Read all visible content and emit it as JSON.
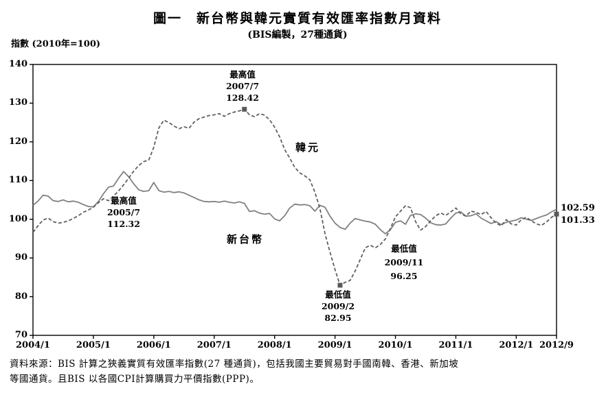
{
  "title": "圖一　新台幣與韓元實質有效匯率指數月資料",
  "subtitle": "(BIS編製，27種通貨)",
  "y_axis_unit": "指數 (2010年=100)",
  "source_note": {
    "line1": "資料來源：BIS 計算之狹義實質有效匯率指數(27 種通貨)，包括我國主要貿易對手國南韓、香港、新加坡",
    "line2": "等國通貨。且BIS 以各國CPI計算購買力平價指數(PPP)。"
  },
  "end_labels": {
    "twd": "102.59",
    "krw": "101.33"
  },
  "chart_data": {
    "type": "line",
    "title": "新台幣與韓元實質有效匯率指數月資料 (BIS編製，27種通貨)",
    "ylabel": "指數 (2010年=100)",
    "ylim": [
      70,
      140
    ],
    "y_ticks": [
      140,
      130,
      120,
      110,
      100,
      90,
      80,
      70
    ],
    "x_range_months": [
      "2004/1",
      "2012/9"
    ],
    "x_tick_labels": [
      "2004/1",
      "2005/1",
      "2006/1",
      "2007/1",
      "2008/1",
      "2009/1",
      "2010/1",
      "2011/1",
      "2012/1",
      "2012/9"
    ],
    "x_tick_month_index": [
      0,
      12,
      24,
      36,
      48,
      60,
      72,
      84,
      96,
      104
    ],
    "grid": false,
    "series": [
      {
        "name": "新台幣",
        "style": "solid",
        "color": "#808080",
        "values": [
          103.6,
          104.7,
          106.2,
          106.0,
          104.8,
          104.6,
          105.0,
          104.5,
          104.7,
          104.4,
          103.8,
          103.3,
          103.2,
          104.6,
          106.6,
          108.3,
          108.6,
          110.6,
          112.32,
          111.0,
          109.2,
          107.6,
          107.2,
          107.4,
          109.5,
          107.4,
          107.0,
          107.2,
          106.9,
          107.1,
          106.8,
          106.2,
          105.6,
          105.0,
          104.6,
          104.5,
          104.6,
          104.4,
          104.7,
          104.4,
          104.2,
          104.5,
          104.1,
          102.0,
          102.2,
          101.6,
          101.3,
          101.5,
          100.1,
          99.6,
          100.9,
          102.9,
          103.9,
          103.7,
          103.8,
          103.5,
          102.1,
          103.6,
          103.1,
          100.8,
          99.0,
          97.9,
          97.4,
          99.0,
          100.2,
          99.8,
          99.5,
          99.3,
          98.7,
          97.3,
          96.25,
          97.3,
          99.2,
          99.6,
          98.7,
          101.0,
          101.4,
          101.2,
          100.3,
          99.1,
          98.6,
          98.5,
          98.8,
          100.3,
          101.6,
          101.9,
          100.8,
          100.9,
          101.4,
          100.3,
          99.6,
          98.9,
          99.4,
          98.6,
          99.2,
          99.5,
          99.8,
          100.4,
          100.0,
          99.7,
          100.2,
          100.7,
          101.1,
          101.9,
          102.59
        ]
      },
      {
        "name": "韓元",
        "style": "dashed",
        "color": "#5f5f5f",
        "values": [
          96.6,
          98.3,
          99.8,
          100.3,
          99.4,
          99.0,
          99.2,
          99.6,
          100.2,
          100.9,
          101.8,
          102.4,
          103.1,
          104.3,
          105.3,
          104.8,
          106.0,
          107.3,
          108.9,
          110.6,
          112.4,
          113.9,
          114.9,
          115.3,
          118.6,
          123.6,
          125.6,
          125.0,
          124.1,
          123.4,
          123.9,
          123.5,
          125.1,
          126.0,
          126.4,
          126.8,
          127.0,
          127.3,
          126.6,
          127.3,
          127.7,
          128.0,
          128.42,
          127.0,
          126.5,
          127.3,
          126.9,
          125.7,
          123.8,
          121.3,
          118.0,
          115.8,
          113.4,
          112.0,
          111.2,
          110.2,
          107.0,
          102.8,
          96.3,
          91.5,
          87.0,
          82.95,
          83.7,
          84.2,
          86.6,
          89.6,
          92.6,
          93.3,
          92.6,
          93.5,
          94.9,
          97.6,
          100.6,
          102.1,
          103.5,
          103.0,
          99.4,
          97.2,
          98.1,
          99.6,
          100.9,
          101.6,
          101.0,
          101.9,
          102.9,
          101.4,
          100.8,
          102.1,
          101.8,
          101.2,
          102.0,
          100.4,
          99.0,
          98.3,
          99.9,
          98.8,
          98.5,
          99.9,
          100.5,
          99.6,
          98.8,
          98.4,
          99.3,
          100.5,
          101.33
        ]
      }
    ],
    "markers": [
      {
        "series_index": 1,
        "month_index": 42,
        "value": 128.42
      },
      {
        "series_index": 1,
        "month_index": 61,
        "value": 82.95
      },
      {
        "series_index": 1,
        "month_index": 104,
        "value": 101.33
      }
    ],
    "marker_color": "#5a5a5a",
    "extremes": {
      "krw_max": {
        "label": "最高值",
        "date": "2007/7",
        "value": "128.42"
      },
      "twd_max": {
        "label": "最高值",
        "date": "2005/7",
        "value": "112.32"
      },
      "krw_min": {
        "label": "最低值",
        "date": "2009/2",
        "value": "82.95"
      },
      "twd_min": {
        "label": "最低值",
        "date": "2009/11",
        "value": "96.25"
      }
    },
    "series_inline_labels": {
      "krw": "韓元",
      "twd": "新台幣"
    },
    "axis_color": "#000000"
  }
}
